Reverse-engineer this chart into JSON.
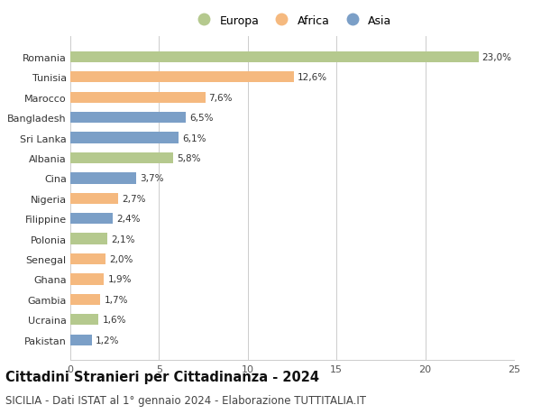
{
  "title": "Cittadini Stranieri per Cittadinanza - 2024",
  "subtitle": "SICILIA - Dati ISTAT al 1° gennaio 2024 - Elaborazione TUTTITALIA.IT",
  "categories": [
    "Romania",
    "Tunisia",
    "Marocco",
    "Bangladesh",
    "Sri Lanka",
    "Albania",
    "Cina",
    "Nigeria",
    "Filippine",
    "Polonia",
    "Senegal",
    "Ghana",
    "Gambia",
    "Ucraina",
    "Pakistan"
  ],
  "values": [
    23.0,
    12.6,
    7.6,
    6.5,
    6.1,
    5.8,
    3.7,
    2.7,
    2.4,
    2.1,
    2.0,
    1.9,
    1.7,
    1.6,
    1.2
  ],
  "labels": [
    "23,0%",
    "12,6%",
    "7,6%",
    "6,5%",
    "6,1%",
    "5,8%",
    "3,7%",
    "2,7%",
    "2,4%",
    "2,1%",
    "2,0%",
    "1,9%",
    "1,7%",
    "1,6%",
    "1,2%"
  ],
  "continents": [
    "Europa",
    "Africa",
    "Africa",
    "Asia",
    "Asia",
    "Europa",
    "Asia",
    "Africa",
    "Asia",
    "Europa",
    "Africa",
    "Africa",
    "Africa",
    "Europa",
    "Asia"
  ],
  "colors": {
    "Europa": "#b5c98e",
    "Africa": "#f5b97f",
    "Asia": "#7b9fc7"
  },
  "xlim": [
    0,
    25
  ],
  "xticks": [
    0,
    5,
    10,
    15,
    20,
    25
  ],
  "background_color": "#ffffff",
  "grid_color": "#cccccc",
  "title_fontsize": 10.5,
  "subtitle_fontsize": 8.5,
  "label_fontsize": 7.5,
  "tick_fontsize": 8,
  "legend_fontsize": 9,
  "bar_height": 0.55
}
